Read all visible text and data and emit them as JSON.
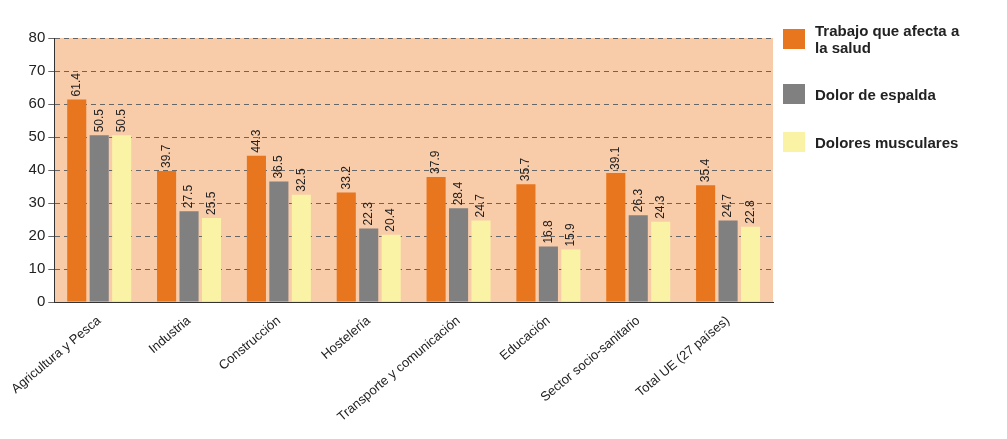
{
  "chart_data": {
    "type": "bar",
    "categories": [
      "Agricultura y Pesca",
      "Industria",
      "Construcción",
      "Hostelería",
      "Transporte y comunicación",
      "Educación",
      "Sector socio-sanitario",
      "Total UE (27 países)"
    ],
    "series": [
      {
        "name": "Trabajo que afecta a la salud",
        "color": "#e8761e",
        "values": [
          61.4,
          39.7,
          44.3,
          33.2,
          37.9,
          35.7,
          39.1,
          35.4
        ]
      },
      {
        "name": "Dolor de espalda",
        "color": "#808080",
        "values": [
          50.5,
          27.5,
          36.5,
          22.3,
          28.4,
          16.8,
          26.3,
          24.7
        ]
      },
      {
        "name": "Dolores musculares",
        "color": "#faf3a6",
        "values": [
          50.5,
          25.5,
          32.5,
          20.4,
          24.7,
          15.9,
          24.3,
          22.8
        ]
      }
    ],
    "ylim": [
      0,
      80
    ],
    "yticks": [
      0,
      10,
      20,
      30,
      40,
      50,
      60,
      70,
      80
    ],
    "grid": "y",
    "legend": "right",
    "data_labels": true
  }
}
